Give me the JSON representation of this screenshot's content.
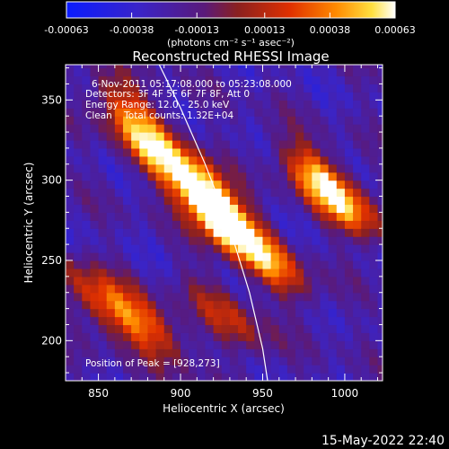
{
  "colorbar": {
    "ticks": [
      "-0.00063",
      "-0.00038",
      "-0.00013",
      "0.00013",
      "0.00038",
      "0.00063"
    ],
    "range": [
      -0.00063,
      0.00063
    ]
  },
  "chart_data": {
    "type": "heatmap",
    "title": "Reconstructed RHESSI Image",
    "xlabel": "Heliocentric X (arcsec)",
    "ylabel": "Heliocentric Y (arcsec)",
    "xlim": [
      830,
      1023
    ],
    "ylim": [
      175,
      372
    ],
    "xticks": [
      850,
      900,
      950,
      1000
    ],
    "yticks": [
      200,
      250,
      300,
      350
    ],
    "colorbar_unit": "(photons cm⁻² s⁻¹ asec⁻²)",
    "colorbar_range": [
      -0.00063,
      0.00063
    ],
    "peak": [
      928,
      273
    ],
    "annotations": [
      "6-Nov-2011 05:17:08.000 to 05:23:08.000",
      "Detectors: 3F 4F 5F 6F 7F 8F, Att 0",
      "Energy Range: 12.0 - 25.0 keV",
      "Clean    Total counts: 1.32E+04"
    ],
    "peak_label": "Position of Peak = [928,273]",
    "limb_curve": [
      [
        887,
        372
      ],
      [
        900,
        345
      ],
      [
        915,
        310
      ],
      [
        930,
        270
      ],
      [
        942,
        230
      ],
      [
        950,
        195
      ],
      [
        953,
        175
      ]
    ],
    "emission_features": [
      {
        "x": 925,
        "y": 275,
        "amp": 1.0
      },
      {
        "x": 910,
        "y": 300,
        "amp": 0.7
      },
      {
        "x": 955,
        "y": 250,
        "amp": 0.55
      },
      {
        "x": 985,
        "y": 300,
        "amp": 0.6
      },
      {
        "x": 1000,
        "y": 285,
        "amp": 0.5
      },
      {
        "x": 880,
        "y": 320,
        "amp": 0.55
      },
      {
        "x": 870,
        "y": 345,
        "amp": 0.45
      },
      {
        "x": 880,
        "y": 210,
        "amp": 0.55
      },
      {
        "x": 850,
        "y": 225,
        "amp": 0.5
      },
      {
        "x": 930,
        "y": 215,
        "amp": 0.4
      }
    ]
  },
  "timestamp": "15-May-2022 22:40"
}
